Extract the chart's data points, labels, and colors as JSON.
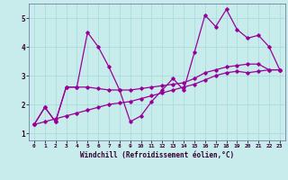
{
  "xlabel": "Windchill (Refroidissement éolien,°C)",
  "bg_color": "#c8ecec",
  "line_color": "#990099",
  "grid_color": "#aadddd",
  "spine_color": "#9999bb",
  "xlim": [
    -0.5,
    23.5
  ],
  "ylim": [
    0.75,
    5.5
  ],
  "xticks": [
    0,
    1,
    2,
    3,
    4,
    5,
    6,
    7,
    8,
    9,
    10,
    11,
    12,
    13,
    14,
    15,
    16,
    17,
    18,
    19,
    20,
    21,
    22,
    23
  ],
  "yticks": [
    1,
    2,
    3,
    4,
    5
  ],
  "series": [
    [
      1.3,
      1.9,
      1.4,
      2.6,
      2.6,
      4.5,
      4.0,
      3.3,
      2.5,
      1.4,
      1.6,
      2.1,
      2.5,
      2.9,
      2.5,
      3.8,
      5.1,
      4.7,
      5.3,
      4.6,
      4.3,
      4.4,
      4.0,
      3.2
    ],
    [
      1.3,
      1.9,
      1.4,
      2.6,
      2.6,
      2.6,
      2.55,
      2.5,
      2.5,
      2.5,
      2.55,
      2.6,
      2.65,
      2.7,
      2.75,
      2.9,
      3.1,
      3.2,
      3.3,
      3.35,
      3.4,
      3.4,
      3.2,
      3.2
    ],
    [
      1.3,
      1.4,
      1.5,
      1.6,
      1.7,
      1.8,
      1.9,
      2.0,
      2.05,
      2.1,
      2.2,
      2.3,
      2.4,
      2.5,
      2.6,
      2.7,
      2.85,
      3.0,
      3.1,
      3.15,
      3.1,
      3.15,
      3.2,
      3.2
    ]
  ]
}
